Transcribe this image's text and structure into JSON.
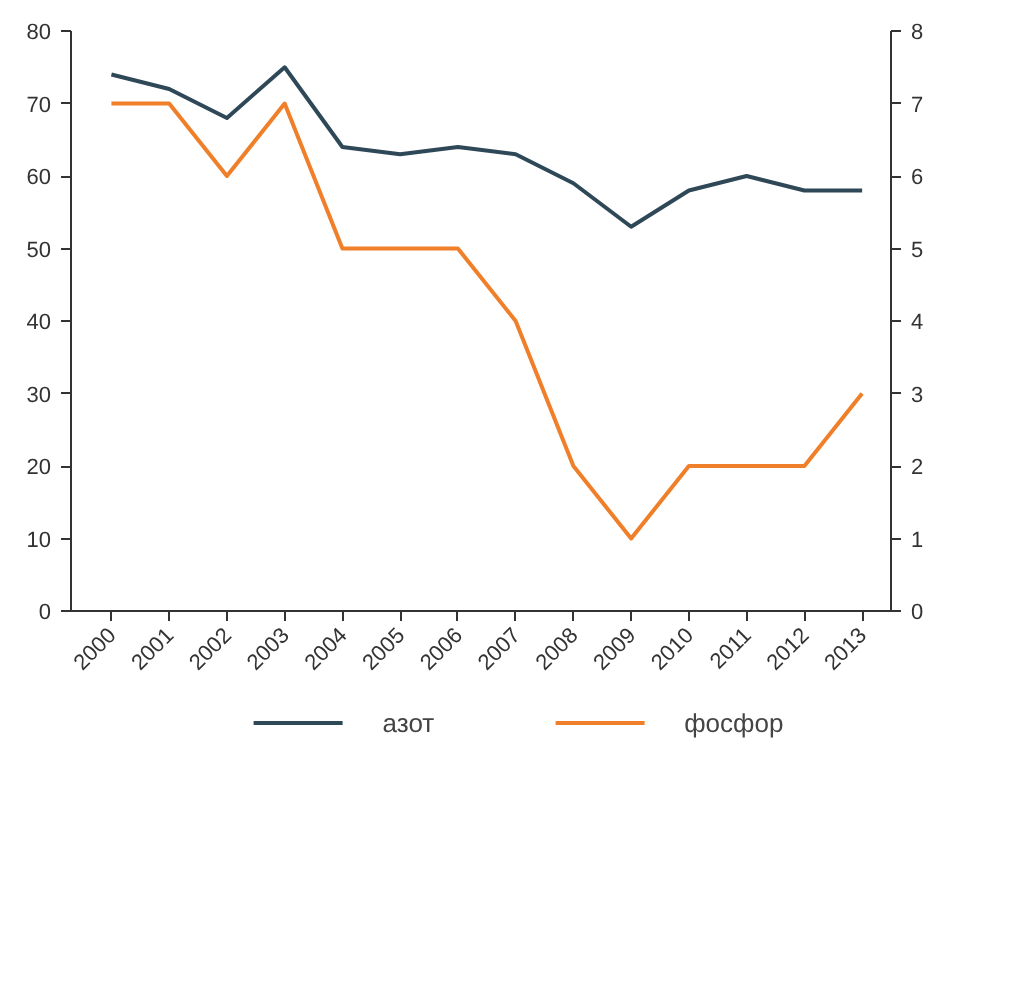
{
  "chart_data": {
    "type": "line",
    "categories": [
      "2000",
      "2001",
      "2002",
      "2003",
      "2004",
      "2005",
      "2006",
      "2007",
      "2008",
      "2009",
      "2010",
      "2011",
      "2012",
      "2013"
    ],
    "series": [
      {
        "name": "азот",
        "color": "#2f4858",
        "values": [
          74,
          72,
          68,
          75,
          64,
          63,
          64,
          63,
          59,
          53,
          58,
          60,
          58,
          58
        ]
      },
      {
        "name": "фосфор",
        "color": "#f07f2a",
        "axis": "y2",
        "values": [
          7,
          7,
          6,
          7,
          5,
          5,
          5,
          4,
          2,
          1,
          2,
          2,
          2,
          3
        ]
      }
    ],
    "ylim": [
      0,
      80
    ],
    "yticks": [
      0,
      10,
      20,
      30,
      40,
      50,
      60,
      70,
      80
    ],
    "y2lim": [
      0,
      8
    ],
    "y2ticks": [
      0,
      1,
      2,
      3,
      4,
      5,
      6,
      7,
      8
    ],
    "grid": false,
    "legend": "bottom",
    "marker": "none",
    "line_style": "solid"
  }
}
